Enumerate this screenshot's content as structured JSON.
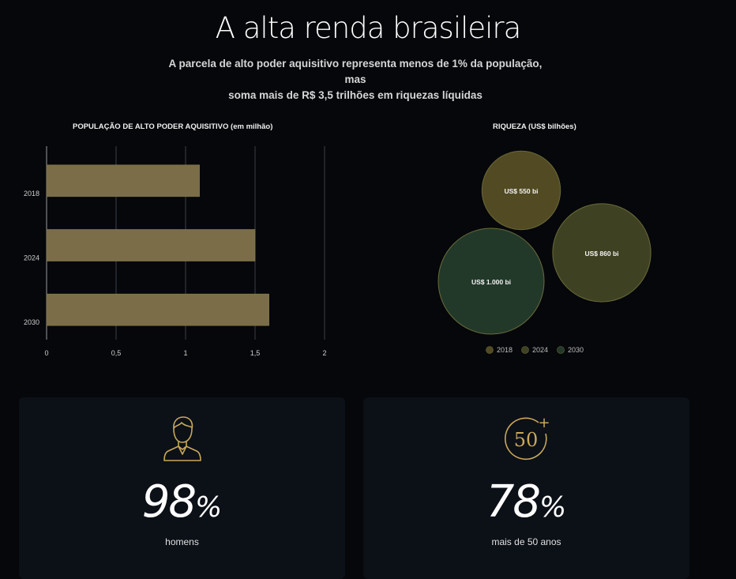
{
  "header": {
    "title": "A alta renda brasileira",
    "subtitle_line1": "A parcela de alto poder aquisitivo representa menos de 1% da população, mas",
    "subtitle_line2": "soma mais de R$ 3,5 trilhões em riquezas líquidas"
  },
  "chart_data": [
    {
      "type": "bar",
      "orientation": "horizontal",
      "title": "POPULAÇÃO DE ALTO PODER AQUISITIVO (em milhão)",
      "categories": [
        "2018",
        "2024",
        "2030"
      ],
      "values": [
        1.1,
        1.5,
        1.6
      ],
      "xlim": [
        0,
        2
      ],
      "xticks": [
        "0",
        "0,5",
        "1",
        "1,5",
        "2"
      ],
      "grid": true,
      "color": "#7a6d47"
    },
    {
      "type": "bubble",
      "title": "RIQUEZA (US$ bilhões)",
      "series": [
        {
          "name": "2018",
          "value": 550,
          "label": "US$ 550 bi",
          "color": "#524a22"
        },
        {
          "name": "2024",
          "value": 860,
          "label": "US$ 860 bi",
          "color": "#3f4222"
        },
        {
          "name": "2030",
          "value": 1000,
          "label": "US$ 1.000 bi",
          "color": "#22392a"
        }
      ],
      "legend_position": "bottom"
    }
  ],
  "cards": [
    {
      "icon": "man-icon",
      "number": "98",
      "unit": "%",
      "caption": "homens"
    },
    {
      "icon": "fifty-plus-icon",
      "number": "78",
      "unit": "%",
      "caption": "mais de 50 anos",
      "icon_text": "50",
      "icon_plus": "+"
    }
  ]
}
